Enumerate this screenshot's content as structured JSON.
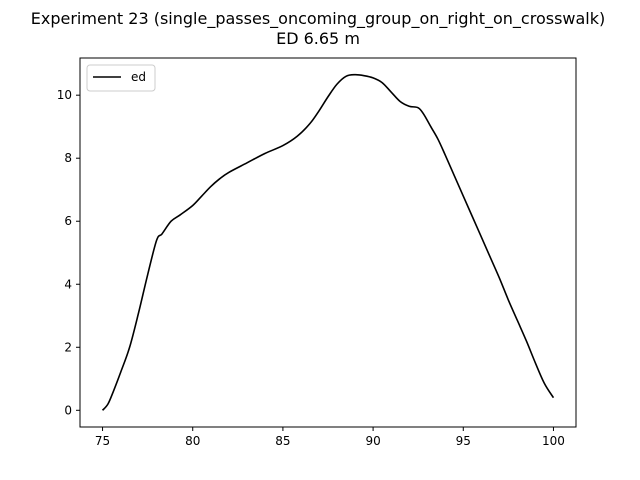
{
  "chart_data": {
    "type": "line",
    "title": "Experiment 23 (single_passes_oncoming_group_on_right_on_crosswalk)",
    "subtitle": "ED 6.65 m",
    "xlabel": "",
    "ylabel": "",
    "xlim": [
      73.75,
      101.25
    ],
    "ylim": [
      -0.53,
      11.18
    ],
    "xticks": [
      75,
      80,
      85,
      90,
      95,
      100
    ],
    "yticks": [
      0,
      2,
      4,
      6,
      8,
      10
    ],
    "grid": false,
    "legend_position": "top-left",
    "series": [
      {
        "name": "ed",
        "color": "#000000",
        "x": [
          75.0,
          75.3,
          75.6,
          76.0,
          76.5,
          77.0,
          77.5,
          78.0,
          78.3,
          78.8,
          79.3,
          80.0,
          80.5,
          81.0,
          81.5,
          82.0,
          83.0,
          84.0,
          85.0,
          85.8,
          86.5,
          87.0,
          87.5,
          88.0,
          88.5,
          89.0,
          89.5,
          90.0,
          90.5,
          91.0,
          91.5,
          92.0,
          92.5,
          92.8,
          93.2,
          93.6,
          94.0,
          94.5,
          95.0,
          95.5,
          96.0,
          96.5,
          97.0,
          97.5,
          98.0,
          98.5,
          99.0,
          99.5,
          100.0
        ],
        "y": [
          0.0,
          0.2,
          0.6,
          1.2,
          2.0,
          3.1,
          4.3,
          5.4,
          5.6,
          6.0,
          6.2,
          6.5,
          6.8,
          7.1,
          7.35,
          7.55,
          7.85,
          8.15,
          8.4,
          8.7,
          9.1,
          9.5,
          9.95,
          10.35,
          10.6,
          10.65,
          10.62,
          10.55,
          10.4,
          10.1,
          9.8,
          9.65,
          9.6,
          9.4,
          9.0,
          8.6,
          8.1,
          7.45,
          6.8,
          6.15,
          5.5,
          4.85,
          4.2,
          3.5,
          2.85,
          2.2,
          1.5,
          0.85,
          0.4
        ]
      }
    ]
  }
}
